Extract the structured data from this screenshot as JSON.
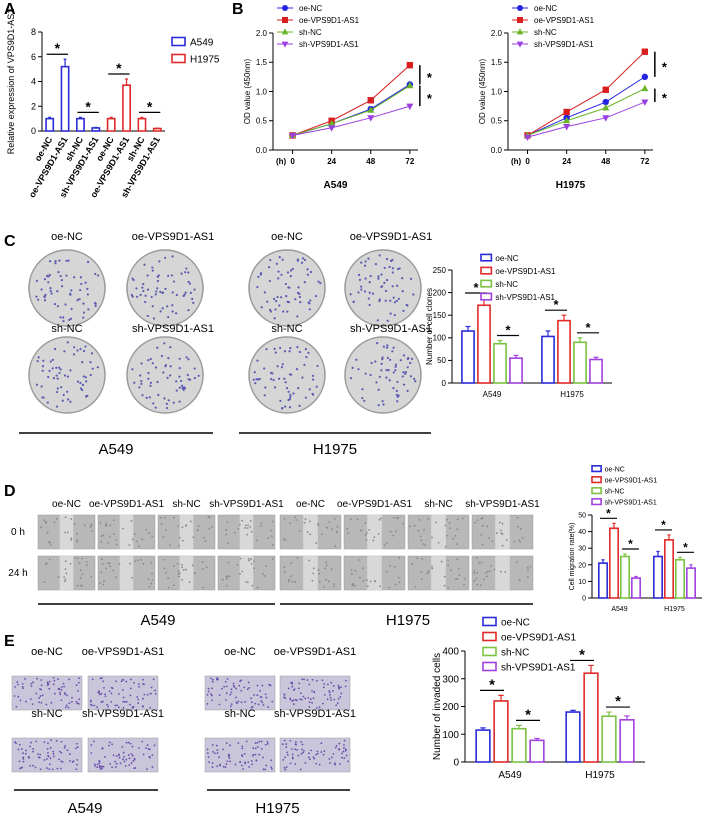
{
  "panel_labels": [
    "A",
    "B",
    "C",
    "D",
    "E"
  ],
  "panels": {
    "C": {
      "labels": [
        "oe-NC",
        "oe-VPS9D1-AS1",
        "sh-NC",
        "sh-VPS9D1-AS1",
        "oe-NC",
        "oe-VPS9D1-AS1",
        "sh-NC",
        "sh-VPS9D1-AS1"
      ],
      "groups": [
        "A549",
        "H1975"
      ]
    },
    "D": {
      "labels": [
        "oe-NC",
        "oe-VPS9D1-AS1",
        "sh-NC",
        "sh-VPS9D1-AS1",
        "oe-NC",
        "oe-VPS9D1-AS1",
        "sh-NC",
        "sh-VPS9D1-AS1"
      ],
      "rows": [
        "0 h",
        "24 h"
      ],
      "groups": [
        "A549",
        "H1975"
      ]
    },
    "E": {
      "labels": [
        "oe-NC",
        "oe-VPS9D1-AS1",
        "sh-NC",
        "sh-VPS9D1-AS1",
        "oe-NC",
        "oe-VPS9D1-AS1",
        "sh-NC",
        "sh-VPS9D1-AS1"
      ],
      "groups": [
        "A549",
        "H1975"
      ]
    }
  },
  "chart_data": [
    {
      "type": "bar",
      "ylabel": "Relative expression of VPS9D1-AS1",
      "categories": [
        "oe-NC",
        "oe-VPS9D1-AS1",
        "sh-NC",
        "sh-VPS9D1-AS1",
        "oe-NC",
        "oe-VPS9D1-AS1",
        "sh-NC",
        "sh-VPS9D1-AS1"
      ],
      "series": [
        {
          "name": "A549",
          "color": "#2b2bd9",
          "values": [
            1,
            5.2,
            1,
            0.25,
            null,
            null,
            null,
            null
          ],
          "errors": [
            0.1,
            0.6,
            0.1,
            0.05,
            null,
            null,
            null,
            null
          ]
        },
        {
          "name": "H1975",
          "color": "#e02a2a",
          "values": [
            null,
            null,
            null,
            null,
            1,
            3.7,
            1,
            0.2
          ],
          "errors": [
            null,
            null,
            null,
            null,
            0.1,
            0.5,
            0.1,
            0.03
          ]
        }
      ],
      "ylim": [
        0,
        8
      ],
      "yticks": [
        0,
        2,
        4,
        6,
        8
      ],
      "annotations": [
        "*",
        "*",
        "*",
        "*"
      ]
    },
    {
      "type": "line",
      "title": "A549",
      "xlabel": "(h)",
      "ylabel": "OD value (450nm)",
      "x": [
        0,
        24,
        48,
        72
      ],
      "xlim": [
        -12,
        77
      ],
      "xticks": [
        0,
        24,
        48,
        72
      ],
      "ylim": [
        0,
        2
      ],
      "yticks": [
        {
          "value": 0,
          "label": "0.0"
        },
        0.5,
        {
          "value": 1,
          "label": "1.0"
        },
        1.5,
        {
          "value": 2,
          "label": "2.0"
        }
      ],
      "series": [
        {
          "name": "oe-NC",
          "color": "#2424e0",
          "marker": "circle",
          "values": [
            0.25,
            0.45,
            0.7,
            1.12
          ]
        },
        {
          "name": "oe-VPS9D1-AS1",
          "color": "#d81e1e",
          "marker": "square",
          "values": [
            0.25,
            0.5,
            0.85,
            1.45
          ]
        },
        {
          "name": "sh-NC",
          "color": "#6ab52a",
          "marker": "triangle-up",
          "values": [
            0.25,
            0.45,
            0.68,
            1.1
          ]
        },
        {
          "name": "sh-VPS9D1-AS1",
          "color": "#9b3fe0",
          "marker": "triangle-down",
          "values": [
            0.25,
            0.38,
            0.55,
            0.75
          ]
        }
      ],
      "annotations": [
        "*",
        "*"
      ]
    },
    {
      "type": "line",
      "title": "H1975",
      "xlabel": "(h)",
      "ylabel": "OD value (450nm)",
      "x": [
        0,
        24,
        48,
        72
      ],
      "xlim": [
        -12,
        77
      ],
      "xticks": [
        0,
        24,
        48,
        72
      ],
      "ylim": [
        0,
        2
      ],
      "yticks": [
        {
          "value": 0,
          "label": "0.0"
        },
        0.5,
        {
          "value": 1,
          "label": "1.0"
        },
        1.5,
        {
          "value": 2,
          "label": "2.0"
        }
      ],
      "series": [
        {
          "name": "oe-NC",
          "color": "#2424e0",
          "marker": "circle",
          "values": [
            0.25,
            0.55,
            0.82,
            1.25
          ]
        },
        {
          "name": "oe-VPS9D1-AS1",
          "color": "#d81e1e",
          "marker": "square",
          "values": [
            0.25,
            0.65,
            1.03,
            1.68
          ]
        },
        {
          "name": "sh-NC",
          "color": "#6ab52a",
          "marker": "triangle-up",
          "values": [
            0.25,
            0.5,
            0.72,
            1.05
          ]
        },
        {
          "name": "sh-VPS9D1-AS1",
          "color": "#9b3fe0",
          "marker": "triangle-down",
          "values": [
            0.22,
            0.4,
            0.55,
            0.82
          ]
        }
      ],
      "annotations": [
        "*",
        "*"
      ]
    },
    {
      "type": "bar",
      "ylabel": "Number of cell clones",
      "categories": [
        "A549",
        "H1975"
      ],
      "series": [
        {
          "name": "oe-NC",
          "color": "#2b2bd9",
          "values": [
            115,
            103
          ],
          "errors": [
            10,
            12
          ]
        },
        {
          "name": "oe-VPS9D1-AS1",
          "color": "#e02a2a",
          "values": [
            172,
            138
          ],
          "errors": [
            16,
            12
          ]
        },
        {
          "name": "sh-NC",
          "color": "#7cc242",
          "values": [
            87,
            90
          ],
          "errors": [
            7,
            10
          ]
        },
        {
          "name": "sh-VPS9D1-AS1",
          "color": "#a040e0",
          "values": [
            55,
            52
          ],
          "errors": [
            6,
            5
          ]
        }
      ],
      "ylim": [
        0,
        250
      ],
      "yticks": [
        0,
        50,
        100,
        150,
        200,
        250
      ],
      "annotations": [
        "*",
        "*",
        "*",
        "*"
      ]
    },
    {
      "type": "bar",
      "ylabel": "Cell migration rate(%)",
      "categories": [
        "A549",
        "H1975"
      ],
      "series": [
        {
          "name": "oe-NC",
          "color": "#2b2bd9",
          "values": [
            21,
            25
          ],
          "errors": [
            2,
            3
          ]
        },
        {
          "name": "oe-VPS9D1-AS1",
          "color": "#e02a2a",
          "values": [
            42,
            35
          ],
          "errors": [
            3,
            3
          ]
        },
        {
          "name": "sh-NC",
          "color": "#7cc242",
          "values": [
            25,
            23
          ],
          "errors": [
            1.5,
            1.5
          ]
        },
        {
          "name": "sh-VPS9D1-AS1",
          "color": "#a040e0",
          "values": [
            12,
            18
          ],
          "errors": [
            1,
            2
          ]
        }
      ],
      "ylim": [
        0,
        50
      ],
      "yticks": [
        0,
        10,
        20,
        30,
        40,
        50
      ],
      "annotations": [
        "*",
        "*",
        "*",
        "*"
      ]
    },
    {
      "type": "bar",
      "ylabel": "Number of invaded cells",
      "categories": [
        "A549",
        "H1975"
      ],
      "series": [
        {
          "name": "oe-NC",
          "color": "#2b2bd9",
          "values": [
            115,
            180
          ],
          "errors": [
            8,
            6
          ]
        },
        {
          "name": "oe-VPS9D1-AS1",
          "color": "#e02a2a",
          "values": [
            220,
            320
          ],
          "errors": [
            20,
            28
          ]
        },
        {
          "name": "sh-NC",
          "color": "#7cc242",
          "values": [
            120,
            165
          ],
          "errors": [
            12,
            15
          ]
        },
        {
          "name": "sh-VPS9D1-AS1",
          "color": "#a040e0",
          "values": [
            78,
            152
          ],
          "errors": [
            7,
            14
          ]
        }
      ],
      "ylim": [
        0,
        400
      ],
      "yticks": [
        0,
        100,
        200,
        300,
        400
      ],
      "annotations": [
        "*",
        "*",
        "*",
        "*"
      ]
    }
  ]
}
